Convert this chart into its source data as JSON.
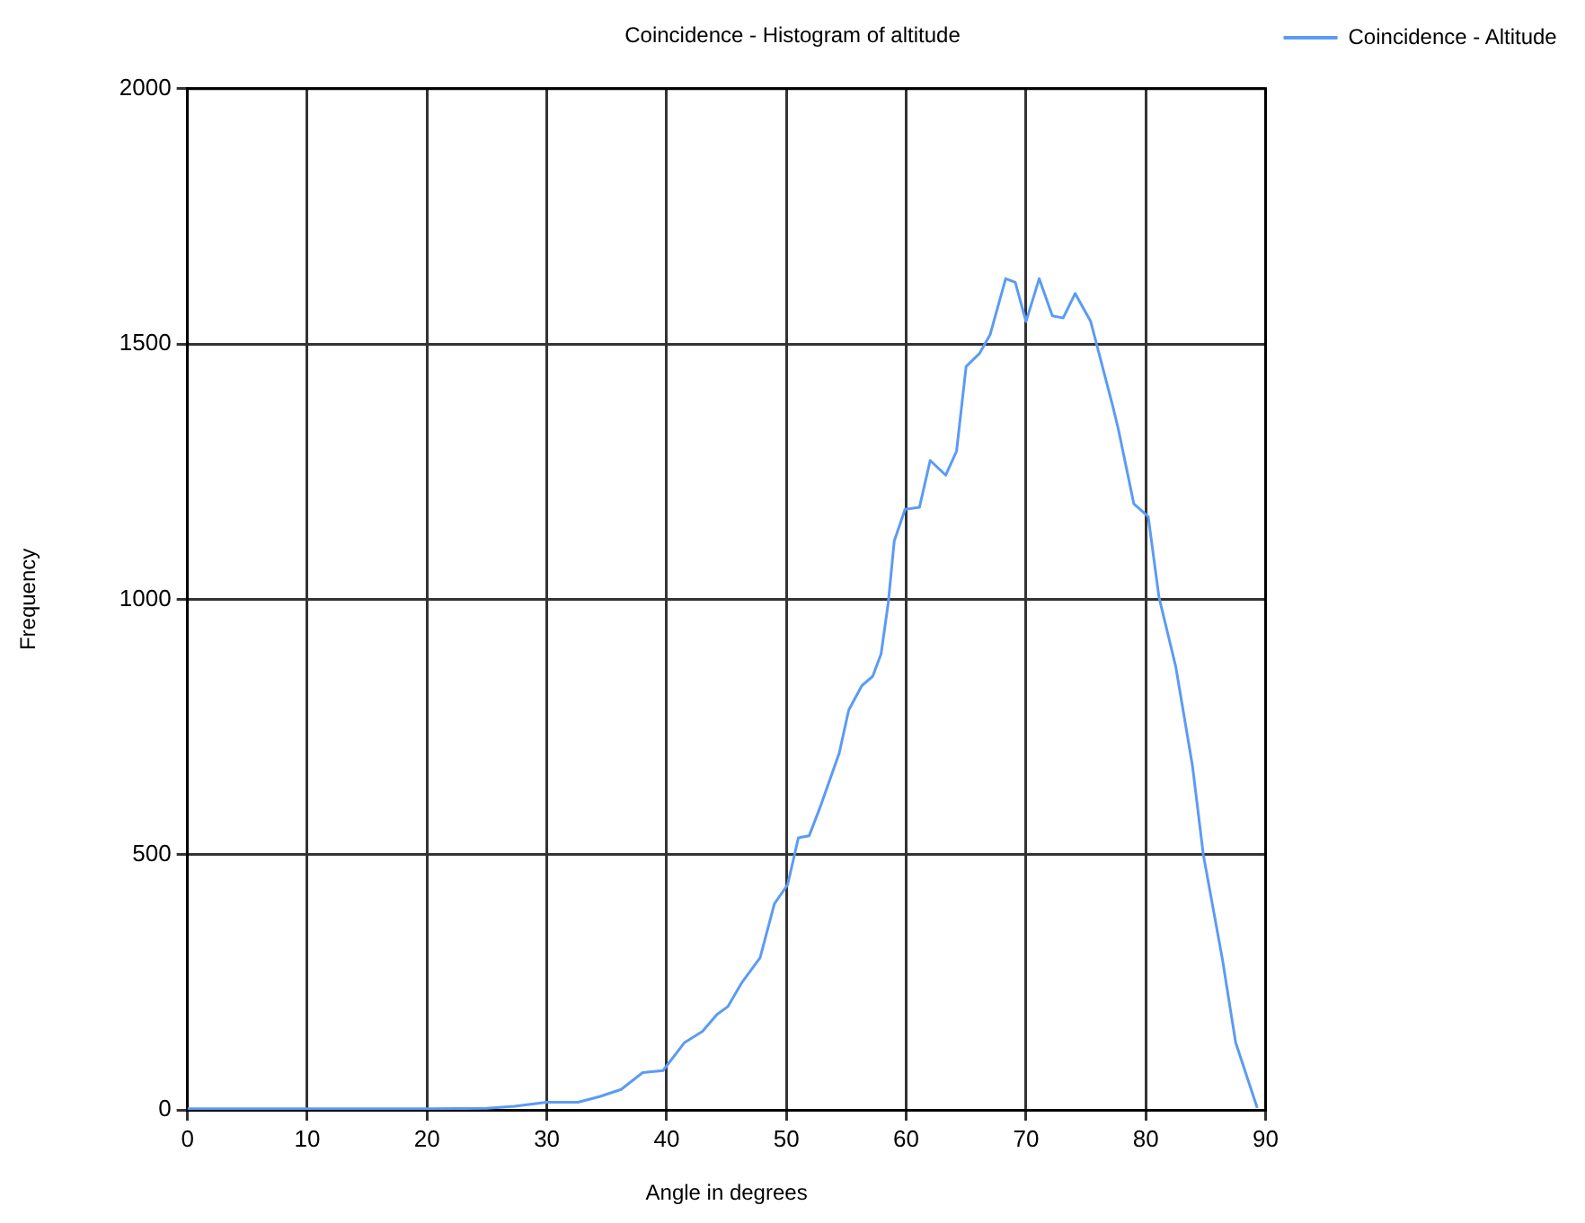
{
  "chart_data": {
    "type": "line",
    "title": "Coincidence - Histogram of altitude",
    "xlabel": "Angle in degrees",
    "ylabel": "Frequency",
    "x": [
      0,
      10,
      20,
      25,
      27.3,
      30,
      32.6,
      34.4,
      36.2,
      38,
      39.7,
      41.5,
      43,
      44.2,
      45.1,
      46.3,
      47.8,
      49,
      50.1,
      51,
      51.9,
      52.8,
      54.4,
      55.2,
      56.3,
      57.2,
      57.9,
      58.5,
      59,
      59.9,
      61.1,
      62,
      63.3,
      64.2,
      65,
      66.1,
      67,
      68.3,
      69.1,
      70,
      71.1,
      72.2,
      73.1,
      74.1,
      75.4,
      77.2,
      77.7,
      79,
      80.2,
      81.1,
      82.5,
      83.9,
      84.8,
      86.4,
      87.5,
      89.3
    ],
    "series": [
      {
        "name": "Coincidence - Altitude",
        "color": "#5b9bf5",
        "values": [
          2,
          2,
          2,
          3,
          7,
          15,
          15,
          26,
          40,
          73,
          77,
          132,
          154,
          187,
          202,
          250,
          298,
          404,
          441,
          533,
          537,
          592,
          698,
          783,
          831,
          849,
          893,
          993,
          1114,
          1176,
          1180,
          1272,
          1243,
          1290,
          1456,
          1481,
          1518,
          1628,
          1621,
          1544,
          1628,
          1555,
          1551,
          1599,
          1544,
          1382,
          1334,
          1187,
          1162,
          1004,
          868,
          673,
          500,
          294,
          132,
          4
        ]
      }
    ],
    "xlim": [
      0,
      90
    ],
    "xticks": [
      0,
      10,
      20,
      30,
      40,
      50,
      60,
      70,
      80,
      90
    ],
    "ylim": [
      0,
      2000
    ],
    "yticks": [
      0,
      500,
      1000,
      1500,
      2000
    ],
    "grid": true,
    "legend": "top right",
    "marker": "none",
    "line_style": "solid"
  }
}
